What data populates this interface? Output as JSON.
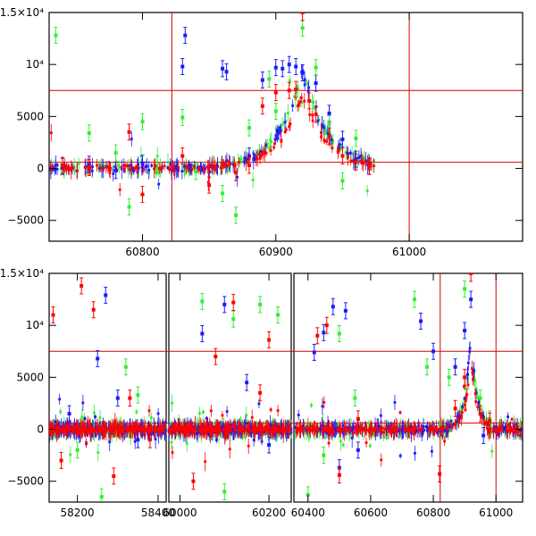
{
  "colors": {
    "blue": "#1a1aff",
    "green": "#33ee33",
    "red": "#ff0000",
    "ref_line": "#d40000"
  },
  "chart_data": [
    {
      "type": "scatter",
      "xlim": [
        60730,
        61085
      ],
      "ylim": [
        -7000,
        15000
      ],
      "x_ticks": [
        60800,
        60900,
        61000
      ],
      "x_tick_labels": [
        "60800",
        "60900",
        "61000"
      ],
      "y_ticks": [
        -5000,
        0,
        5000,
        10000,
        15000
      ],
      "y_tick_labels": [
        "−5000",
        "0",
        "5000",
        "10⁴",
        "1.5×10⁴"
      ],
      "hlines": [
        7500,
        600
      ],
      "vlines": [
        60822,
        61000
      ],
      "grid": false,
      "legend": "none",
      "series": [
        {
          "color": "blue",
          "points": [
            [
              60740,
              200
            ],
            [
              60760,
              400
            ],
            [
              60780,
              -200
            ],
            [
              60800,
              500
            ],
            [
              60830,
              9800
            ],
            [
              60832,
              12800
            ],
            [
              60860,
              9600
            ],
            [
              60863,
              9300
            ],
            [
              60880,
              1200
            ],
            [
              60890,
              8500
            ],
            [
              60900,
              9700
            ],
            [
              60905,
              9600
            ],
            [
              60910,
              10000
            ],
            [
              60915,
              9800
            ],
            [
              60920,
              9200
            ],
            [
              60930,
              8200
            ],
            [
              60940,
              5300
            ],
            [
              60950,
              2800
            ],
            [
              60960,
              900
            ],
            [
              60970,
              200
            ]
          ]
        },
        {
          "color": "green",
          "points": [
            [
              60735,
              12800
            ],
            [
              60760,
              3400
            ],
            [
              60780,
              1500
            ],
            [
              60790,
              -3700
            ],
            [
              60800,
              4500
            ],
            [
              60830,
              4900
            ],
            [
              60840,
              -300
            ],
            [
              60860,
              -2400
            ],
            [
              60870,
              -4500
            ],
            [
              60880,
              3900
            ],
            [
              60895,
              8600
            ],
            [
              60900,
              5500
            ],
            [
              60920,
              13500
            ],
            [
              60930,
              9700
            ],
            [
              60940,
              4300
            ],
            [
              60950,
              -1200
            ],
            [
              60960,
              2900
            ]
          ]
        },
        {
          "color": "red",
          "points": [
            [
              60740,
              300
            ],
            [
              60760,
              100
            ],
            [
              60790,
              3500
            ],
            [
              60800,
              -2500
            ],
            [
              60830,
              1200
            ],
            [
              60850,
              -1600
            ],
            [
              60870,
              -400
            ],
            [
              60880,
              300
            ],
            [
              60890,
              6000
            ],
            [
              60900,
              7300
            ],
            [
              60910,
              7500
            ],
            [
              60915,
              7600
            ],
            [
              60920,
              15000
            ],
            [
              60925,
              6500
            ],
            [
              60930,
              5200
            ],
            [
              60940,
              3100
            ],
            [
              60950,
              1200
            ],
            [
              60960,
              600
            ],
            [
              60970,
              200
            ]
          ]
        }
      ]
    },
    {
      "type": "scatter",
      "x_segments": [
        [
          58130,
          58420
        ],
        [
          59975,
          60250
        ],
        [
          60355,
          61085
        ]
      ],
      "ylim": [
        -7000,
        15000
      ],
      "x_ticks": [
        58200,
        58400,
        60000,
        60200,
        60400,
        60600,
        60800,
        61000
      ],
      "x_tick_labels": [
        "58200",
        "58400",
        "60000",
        "60200",
        "60400",
        "60600",
        "60800",
        "61000"
      ],
      "y_ticks": [
        -5000,
        0,
        5000,
        10000,
        15000
      ],
      "y_tick_labels": [
        "−5000",
        "0",
        "5000",
        "10⁴",
        "1.5×10⁴"
      ],
      "hlines": [
        7500,
        600
      ],
      "vlines": [
        60822,
        61000
      ],
      "grid": false,
      "legend": "none",
      "series": [
        {
          "color": "blue",
          "points": [
            [
              58180,
              1500
            ],
            [
              58250,
              6800
            ],
            [
              58270,
              12900
            ],
            [
              58300,
              3000
            ],
            [
              58350,
              -1000
            ],
            [
              60050,
              9200
            ],
            [
              60100,
              12000
            ],
            [
              60150,
              4500
            ],
            [
              60200,
              -1500
            ],
            [
              60420,
              7400
            ],
            [
              60450,
              9300
            ],
            [
              60480,
              11800
            ],
            [
              60500,
              -3700
            ],
            [
              60520,
              11400
            ],
            [
              60560,
              -2000
            ],
            [
              60760,
              10400
            ],
            [
              60800,
              7500
            ],
            [
              60870,
              6000
            ],
            [
              60900,
              9500
            ],
            [
              60920,
              12500
            ],
            [
              60960,
              -600
            ]
          ]
        },
        {
          "color": "green",
          "points": [
            [
              58200,
              -2000
            ],
            [
              58260,
              -6500
            ],
            [
              58320,
              6000
            ],
            [
              58350,
              3300
            ],
            [
              60050,
              12300
            ],
            [
              60100,
              -6000
            ],
            [
              60120,
              10600
            ],
            [
              60180,
              12000
            ],
            [
              60220,
              11000
            ],
            [
              60400,
              -6300
            ],
            [
              60450,
              -2500
            ],
            [
              60500,
              9200
            ],
            [
              60550,
              3000
            ],
            [
              60740,
              12500
            ],
            [
              60780,
              6000
            ],
            [
              60850,
              5000
            ],
            [
              60900,
              13500
            ],
            [
              60950,
              3000
            ],
            [
              60980,
              1000
            ]
          ]
        },
        {
          "color": "red",
          "points": [
            [
              58140,
              11000
            ],
            [
              58160,
              -3000
            ],
            [
              58210,
              13800
            ],
            [
              58240,
              11500
            ],
            [
              58290,
              -4500
            ],
            [
              58330,
              3000
            ],
            [
              58380,
              -1000
            ],
            [
              60030,
              -5000
            ],
            [
              60080,
              7000
            ],
            [
              60120,
              12200
            ],
            [
              60180,
              3500
            ],
            [
              60200,
              8600
            ],
            [
              60430,
              9000
            ],
            [
              60460,
              10000
            ],
            [
              60500,
              -4400
            ],
            [
              60560,
              1000
            ],
            [
              60820,
              -4300
            ],
            [
              60870,
              2000
            ],
            [
              60900,
              5000
            ],
            [
              60920,
              15000
            ],
            [
              60950,
              1500
            ],
            [
              60980,
              800
            ]
          ]
        }
      ]
    }
  ]
}
